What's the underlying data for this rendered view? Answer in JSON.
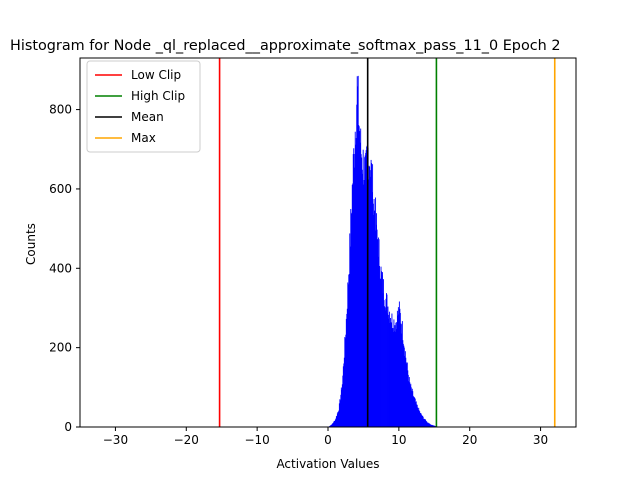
{
  "chart_data": {
    "type": "histogram",
    "title": "Histogram for Node _ql_replaced__approximate_softmax_pass_11_0 Epoch 2",
    "xlabel": "Activation Values",
    "ylabel": "Counts",
    "xlim": [
      -35,
      35
    ],
    "ylim": [
      0,
      930
    ],
    "xticks": [
      -30,
      -20,
      -10,
      0,
      10,
      20,
      30
    ],
    "yticks": [
      0,
      200,
      400,
      600,
      800
    ],
    "bar_color": "#0000ff",
    "legend_position": "top-left",
    "reference_lines": [
      {
        "name": "Low Clip",
        "x": -15.3,
        "color": "#ff0000"
      },
      {
        "name": "High Clip",
        "x": 15.3,
        "color": "#008000"
      },
      {
        "name": "Mean",
        "x": 5.6,
        "color": "#000000"
      },
      {
        "name": "Max",
        "x": 32.0,
        "color": "#ffa500"
      }
    ],
    "histogram_profile": {
      "x": [
        0.0,
        0.5,
        1.0,
        1.5,
        2.0,
        2.5,
        3.0,
        3.3,
        3.6,
        3.9,
        4.1,
        4.3,
        4.6,
        5.0,
        5.3,
        5.6,
        6.0,
        6.5,
        7.0,
        7.5,
        8.0,
        8.5,
        9.0,
        9.5,
        10.0,
        10.3,
        10.6,
        11.0,
        11.5,
        12.0,
        12.5,
        13.0,
        13.5,
        14.0,
        14.5,
        15.0,
        15.5
      ],
      "y": [
        0,
        6,
        18,
        45,
        110,
        250,
        430,
        560,
        680,
        780,
        855,
        790,
        700,
        660,
        630,
        700,
        660,
        560,
        470,
        380,
        330,
        300,
        270,
        260,
        295,
        270,
        230,
        170,
        110,
        80,
        55,
        35,
        22,
        12,
        6,
        3,
        0
      ]
    }
  }
}
